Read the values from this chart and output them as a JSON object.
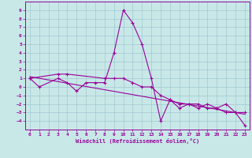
{
  "xlabel": "Windchill (Refroidissement éolien,°C)",
  "x_hours": [
    0,
    1,
    2,
    3,
    4,
    5,
    6,
    7,
    8,
    9,
    10,
    11,
    12,
    13,
    14,
    15,
    16,
    17,
    18,
    19,
    20,
    21,
    22,
    23
  ],
  "windchill": [
    1,
    0,
    null,
    1,
    0.5,
    -0.5,
    0.5,
    0.5,
    0.5,
    4,
    9,
    7.5,
    5,
    1,
    -4,
    -1.5,
    -2.5,
    -2,
    -2.5,
    -2,
    -2.5,
    -2,
    -3,
    -4.5
  ],
  "temp": [
    1,
    null,
    null,
    1.5,
    1.5,
    null,
    null,
    null,
    1,
    1,
    1,
    0.5,
    0,
    0,
    -1,
    -1.5,
    -2,
    -2,
    -2,
    -2.5,
    -2.5,
    -3,
    -3,
    -3
  ],
  "trend_x": [
    0,
    23
  ],
  "trend_y": [
    1.2,
    -3.2
  ],
  "bg_color": "#c8e8e8",
  "grid_color": "#a0c8d0",
  "line_color": "#990099",
  "ylim": [
    -5,
    10
  ],
  "yticks": [
    -4,
    -3,
    -2,
    -1,
    0,
    1,
    2,
    3,
    4,
    5,
    6,
    7,
    8,
    9
  ],
  "xlim": [
    -0.5,
    23.5
  ],
  "xticks": [
    0,
    1,
    2,
    3,
    4,
    5,
    6,
    7,
    8,
    9,
    10,
    11,
    12,
    13,
    14,
    15,
    16,
    17,
    18,
    19,
    20,
    21,
    22,
    23
  ]
}
